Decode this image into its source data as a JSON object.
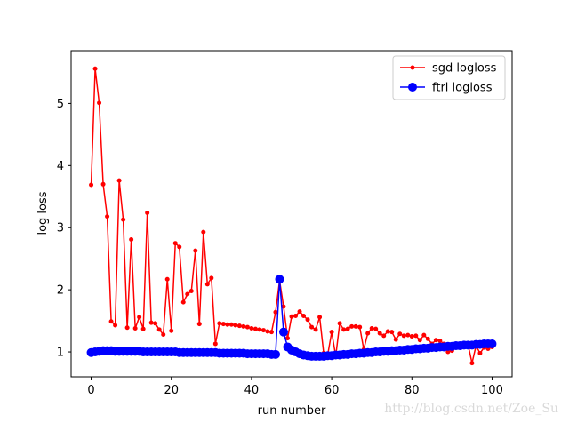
{
  "chart_data": {
    "type": "line",
    "xlabel": "run number",
    "ylabel": "log loss",
    "xlim": [
      -5,
      105
    ],
    "ylim": [
      0.6,
      5.85
    ],
    "xticks": [
      0,
      20,
      40,
      60,
      80,
      100
    ],
    "yticks": [
      1,
      2,
      3,
      4,
      5
    ],
    "grid": false,
    "legend_position": "top-right",
    "series": [
      {
        "name": "sgd logloss",
        "color": "#ff0000",
        "marker": "small-dot",
        "x": [
          0,
          1,
          2,
          3,
          4,
          5,
          6,
          7,
          8,
          9,
          10,
          11,
          12,
          13,
          14,
          15,
          16,
          17,
          18,
          19,
          20,
          21,
          22,
          23,
          24,
          25,
          26,
          27,
          28,
          29,
          30,
          31,
          32,
          33,
          34,
          35,
          36,
          37,
          38,
          39,
          40,
          41,
          42,
          43,
          44,
          45,
          46,
          47,
          48,
          49,
          50,
          51,
          52,
          53,
          54,
          55,
          56,
          57,
          58,
          59,
          60,
          61,
          62,
          63,
          64,
          65,
          66,
          67,
          68,
          69,
          70,
          71,
          72,
          73,
          74,
          75,
          76,
          77,
          78,
          79,
          80,
          81,
          82,
          83,
          84,
          85,
          86,
          87,
          88,
          89,
          90,
          91,
          92,
          93,
          94,
          95,
          96,
          97,
          98,
          99,
          100
        ],
        "y": [
          3.69,
          5.56,
          5.01,
          3.7,
          3.18,
          1.49,
          1.43,
          3.76,
          3.13,
          1.39,
          2.81,
          1.38,
          1.56,
          1.37,
          3.24,
          1.47,
          1.46,
          1.36,
          1.28,
          2.17,
          1.34,
          2.75,
          2.69,
          1.8,
          1.93,
          1.98,
          2.63,
          1.45,
          2.93,
          2.09,
          2.19,
          1.13,
          1.46,
          1.45,
          1.44,
          1.44,
          1.43,
          1.42,
          1.41,
          1.4,
          1.38,
          1.37,
          1.36,
          1.35,
          1.33,
          1.32,
          1.64,
          2.15,
          1.73,
          1.22,
          1.57,
          1.58,
          1.65,
          1.58,
          1.52,
          1.4,
          1.36,
          1.56,
          0.98,
          0.95,
          1.32,
          0.93,
          1.46,
          1.36,
          1.37,
          1.41,
          1.41,
          1.4,
          1.04,
          1.3,
          1.38,
          1.37,
          1.3,
          1.26,
          1.33,
          1.32,
          1.2,
          1.29,
          1.26,
          1.27,
          1.25,
          1.26,
          1.19,
          1.27,
          1.21,
          1.13,
          1.19,
          1.18,
          1.13,
          1.0,
          1.02,
          1.1,
          1.1,
          1.11,
          1.12,
          0.82,
          1.1,
          0.98,
          1.07,
          1.05,
          1.08
        ]
      },
      {
        "name": "ftrl logloss",
        "color": "#0000ff",
        "marker": "large-dot",
        "x": [
          0,
          1,
          2,
          3,
          4,
          5,
          6,
          7,
          8,
          9,
          10,
          11,
          12,
          13,
          14,
          15,
          16,
          17,
          18,
          19,
          20,
          21,
          22,
          23,
          24,
          25,
          26,
          27,
          28,
          29,
          30,
          31,
          32,
          33,
          34,
          35,
          36,
          37,
          38,
          39,
          40,
          41,
          42,
          43,
          44,
          45,
          46,
          47,
          48,
          49,
          50,
          51,
          52,
          53,
          54,
          55,
          56,
          57,
          58,
          59,
          60,
          61,
          62,
          63,
          64,
          65,
          66,
          67,
          68,
          69,
          70,
          71,
          72,
          73,
          74,
          75,
          76,
          77,
          78,
          79,
          80,
          81,
          82,
          83,
          84,
          85,
          86,
          87,
          88,
          89,
          90,
          91,
          92,
          93,
          94,
          95,
          96,
          97,
          98,
          99,
          100
        ],
        "y": [
          0.99,
          1.0,
          1.01,
          1.02,
          1.02,
          1.02,
          1.01,
          1.01,
          1.01,
          1.01,
          1.01,
          1.01,
          1.01,
          1.0,
          1.0,
          1.0,
          1.0,
          1.0,
          1.0,
          1.0,
          1.0,
          1.0,
          0.99,
          0.99,
          0.99,
          0.99,
          0.99,
          0.99,
          0.99,
          0.99,
          0.99,
          0.99,
          0.98,
          0.98,
          0.98,
          0.98,
          0.98,
          0.98,
          0.98,
          0.97,
          0.97,
          0.97,
          0.97,
          0.97,
          0.97,
          0.96,
          0.96,
          2.17,
          1.32,
          1.08,
          1.03,
          1.0,
          0.97,
          0.95,
          0.94,
          0.93,
          0.93,
          0.93,
          0.93,
          0.94,
          0.94,
          0.95,
          0.95,
          0.96,
          0.96,
          0.97,
          0.97,
          0.98,
          0.98,
          0.99,
          0.99,
          1.0,
          1.0,
          1.01,
          1.01,
          1.02,
          1.02,
          1.03,
          1.03,
          1.04,
          1.04,
          1.05,
          1.05,
          1.06,
          1.06,
          1.07,
          1.07,
          1.08,
          1.08,
          1.09,
          1.09,
          1.1,
          1.1,
          1.11,
          1.11,
          1.11,
          1.12,
          1.12,
          1.13,
          1.13,
          1.13
        ]
      }
    ]
  },
  "watermark": "http://blog.csdn.net/Zoe_Su"
}
